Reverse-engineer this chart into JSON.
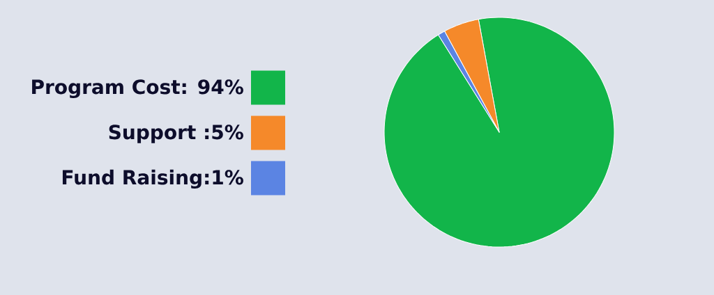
{
  "chart_data": {
    "type": "pie",
    "categories": [
      "Program Cost: 94%",
      "Support :5%",
      "Fund Raising:1%"
    ],
    "values": [
      94,
      5,
      1
    ],
    "colors": [
      "#12b54a",
      "#f5892a",
      "#5b84e3"
    ],
    "legend": "left"
  }
}
